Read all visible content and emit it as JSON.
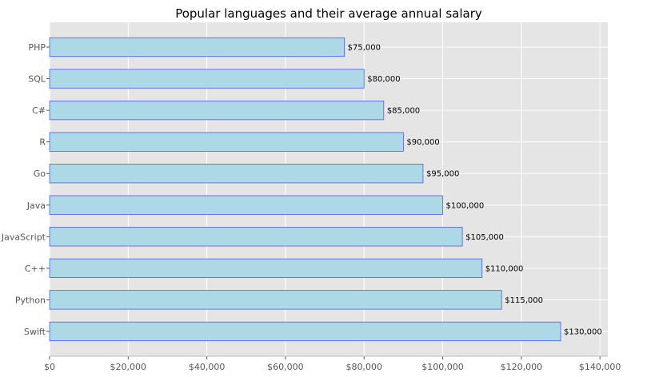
{
  "chart_data": {
    "type": "bar",
    "orientation": "horizontal",
    "title": "Popular languages and their average annual salary",
    "xlabel": "",
    "ylabel": "",
    "categories": [
      "PHP",
      "SQL",
      "C#",
      "R",
      "Go",
      "Java",
      "JavaScript",
      "C++",
      "Python",
      "Swift"
    ],
    "values": [
      75000,
      80000,
      85000,
      90000,
      95000,
      100000,
      105000,
      110000,
      115000,
      130000
    ],
    "data_labels": [
      "$75,000",
      "$80,000",
      "$85,000",
      "$90,000",
      "$95,000",
      "$100,000",
      "$105,000",
      "$110,000",
      "$115,000",
      "$130,000"
    ],
    "xlim": [
      0,
      142000
    ],
    "xticks": [
      0,
      20000,
      40000,
      60000,
      80000,
      100000,
      120000,
      140000
    ],
    "xtick_labels": [
      "$0",
      "$20,000",
      "$40,000",
      "$60,000",
      "$80,000",
      "$100,000",
      "$120,000",
      "$140,000"
    ],
    "grid": true,
    "colors": {
      "bar_fill": "#add8e6",
      "bar_edge": "#0000ff",
      "plot_background": "#e5e5e5",
      "grid": "#ffffff"
    }
  }
}
